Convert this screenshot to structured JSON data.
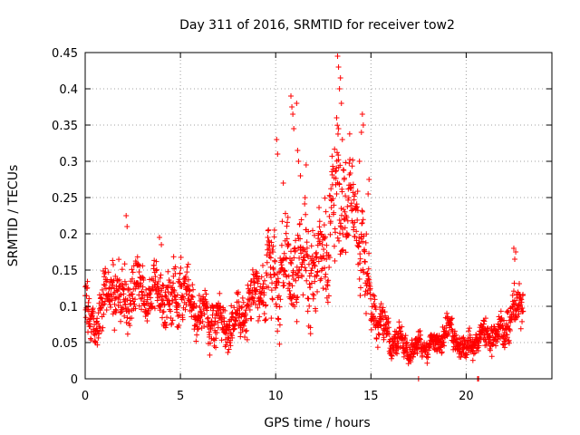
{
  "chart_data": {
    "type": "scatter",
    "title": "Day 311 of 2016, SRMTID for receiver tow2",
    "xlabel": "GPS time / hours",
    "ylabel": "SRMTID / TECUs",
    "xlim": [
      0,
      24.5
    ],
    "ylim": [
      0,
      0.45
    ],
    "xticks": [
      0,
      5,
      10,
      15,
      20
    ],
    "xtick_labels": [
      "0",
      "5",
      "10",
      "15",
      "20"
    ],
    "yticks": [
      0,
      0.05,
      0.1,
      0.15,
      0.2,
      0.25,
      0.3,
      0.35,
      0.4,
      0.45
    ],
    "ytick_labels": [
      "0",
      "0.05",
      "0.1",
      "0.15",
      "0.2",
      "0.25",
      "0.3",
      "0.35",
      "0.4",
      "0.45"
    ],
    "grid": true,
    "marker": "+",
    "marker_color": "#ff0000",
    "series": [
      {
        "name": "SRMTID tow2",
        "trend_x": [
          0,
          0.3,
          0.6,
          1.0,
          1.5,
          2.0,
          2.5,
          3.0,
          3.5,
          4.0,
          4.5,
          5.0,
          5.5,
          6.0,
          6.5,
          7.0,
          7.5,
          8.0,
          8.5,
          9.0,
          9.5,
          10.0,
          10.5,
          11.0,
          11.5,
          12.0,
          12.5,
          13.0,
          13.5,
          14.0,
          14.5,
          15.0,
          15.5,
          16.0,
          16.5,
          17.0,
          17.5,
          18.0,
          18.5,
          19.0,
          19.5,
          20.0,
          20.5,
          21.0,
          21.5,
          22.0,
          22.5,
          23.0
        ],
        "trend_y": [
          0.09,
          0.07,
          0.075,
          0.11,
          0.13,
          0.1,
          0.13,
          0.12,
          0.11,
          0.12,
          0.1,
          0.13,
          0.1,
          0.09,
          0.085,
          0.08,
          0.07,
          0.085,
          0.1,
          0.12,
          0.13,
          0.16,
          0.14,
          0.15,
          0.16,
          0.15,
          0.17,
          0.23,
          0.26,
          0.24,
          0.19,
          0.1,
          0.08,
          0.055,
          0.05,
          0.04,
          0.045,
          0.045,
          0.05,
          0.07,
          0.055,
          0.04,
          0.055,
          0.06,
          0.06,
          0.07,
          0.09,
          0.11
        ],
        "spread": [
          0.03,
          0.02,
          0.02,
          0.03,
          0.03,
          0.03,
          0.03,
          0.03,
          0.03,
          0.03,
          0.03,
          0.03,
          0.03,
          0.025,
          0.025,
          0.02,
          0.02,
          0.02,
          0.025,
          0.03,
          0.035,
          0.06,
          0.05,
          0.05,
          0.05,
          0.045,
          0.05,
          0.06,
          0.06,
          0.05,
          0.05,
          0.025,
          0.02,
          0.015,
          0.015,
          0.012,
          0.012,
          0.012,
          0.012,
          0.015,
          0.015,
          0.012,
          0.015,
          0.015,
          0.015,
          0.02,
          0.025,
          0.02
        ],
        "outliers": [
          {
            "x": 2.15,
            "y": 0.225
          },
          {
            "x": 2.2,
            "y": 0.21
          },
          {
            "x": 3.9,
            "y": 0.195
          },
          {
            "x": 4.0,
            "y": 0.185
          },
          {
            "x": 10.05,
            "y": 0.33
          },
          {
            "x": 10.1,
            "y": 0.31
          },
          {
            "x": 10.4,
            "y": 0.27
          },
          {
            "x": 10.8,
            "y": 0.39
          },
          {
            "x": 10.85,
            "y": 0.375
          },
          {
            "x": 10.9,
            "y": 0.365
          },
          {
            "x": 10.95,
            "y": 0.345
          },
          {
            "x": 11.1,
            "y": 0.38
          },
          {
            "x": 11.15,
            "y": 0.315
          },
          {
            "x": 11.2,
            "y": 0.3
          },
          {
            "x": 11.6,
            "y": 0.295
          },
          {
            "x": 11.3,
            "y": 0.28
          },
          {
            "x": 13.25,
            "y": 0.445
          },
          {
            "x": 13.3,
            "y": 0.43
          },
          {
            "x": 13.35,
            "y": 0.4
          },
          {
            "x": 13.4,
            "y": 0.415
          },
          {
            "x": 13.2,
            "y": 0.36
          },
          {
            "x": 13.45,
            "y": 0.38
          },
          {
            "x": 13.3,
            "y": 0.345
          },
          {
            "x": 13.5,
            "y": 0.33
          },
          {
            "x": 14.55,
            "y": 0.365
          },
          {
            "x": 14.6,
            "y": 0.35
          },
          {
            "x": 14.5,
            "y": 0.34
          },
          {
            "x": 14.4,
            "y": 0.3
          },
          {
            "x": 14.9,
            "y": 0.275
          },
          {
            "x": 14.85,
            "y": 0.255
          },
          {
            "x": 22.5,
            "y": 0.18
          },
          {
            "x": 22.55,
            "y": 0.165
          },
          {
            "x": 22.6,
            "y": 0.175
          },
          {
            "x": 20.6,
            "y": 0.0
          },
          {
            "x": 20.65,
            "y": 0.0
          },
          {
            "x": 17.5,
            "y": 0.0
          }
        ]
      }
    ]
  }
}
